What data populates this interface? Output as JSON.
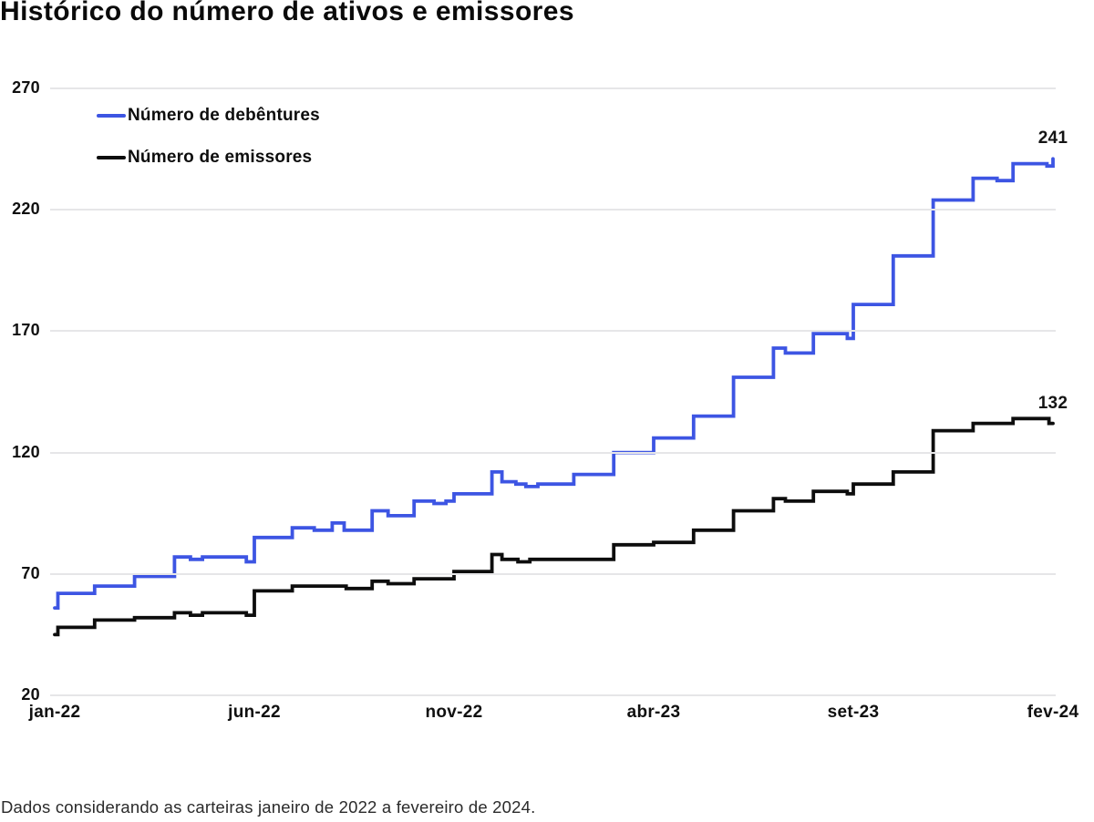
{
  "title": "Histórico do número de ativos e emissores",
  "footnote": "Dados considerando as carteiras janeiro de 2022 a fevereiro de 2024.",
  "chart_data": {
    "type": "line",
    "style": "step-after",
    "title": "Histórico do número de ativos e emissores",
    "xlabel": "",
    "ylabel": "",
    "grid": "horizontal",
    "legend_position": "top-left",
    "x_axis": {
      "unit": "months since jan-2022",
      "range": [
        0,
        25
      ],
      "tick_positions": [
        0,
        5,
        10,
        15,
        20,
        25
      ],
      "tick_labels": [
        "jan-22",
        "jun-22",
        "nov-22",
        "abr-23",
        "set-23",
        "fev-24"
      ]
    },
    "y_axis": {
      "range": [
        20,
        270
      ],
      "ticks": [
        270,
        220,
        170,
        120,
        70,
        20
      ]
    },
    "series": [
      {
        "name": "Número de debêntures",
        "color": "#3d55e3",
        "end_label": "241",
        "points": [
          [
            0,
            56
          ],
          [
            0.08,
            62
          ],
          [
            1,
            65
          ],
          [
            2,
            69
          ],
          [
            3,
            77
          ],
          [
            3.4,
            76
          ],
          [
            3.7,
            77
          ],
          [
            4.8,
            75
          ],
          [
            5,
            85
          ],
          [
            5.95,
            89
          ],
          [
            6.5,
            88
          ],
          [
            6.95,
            91
          ],
          [
            7.25,
            88
          ],
          [
            7.95,
            96
          ],
          [
            8.35,
            94
          ],
          [
            9,
            100
          ],
          [
            9.5,
            99
          ],
          [
            9.8,
            100
          ],
          [
            10,
            103
          ],
          [
            10.95,
            112
          ],
          [
            11.2,
            108
          ],
          [
            11.55,
            107
          ],
          [
            11.8,
            106
          ],
          [
            12.1,
            107
          ],
          [
            13,
            111
          ],
          [
            14,
            120
          ],
          [
            15,
            126
          ],
          [
            16,
            135
          ],
          [
            17,
            151
          ],
          [
            18,
            163
          ],
          [
            18.3,
            161
          ],
          [
            19,
            169
          ],
          [
            19.85,
            167
          ],
          [
            20,
            181
          ],
          [
            21,
            201
          ],
          [
            22,
            224
          ],
          [
            23,
            233
          ],
          [
            23.6,
            232
          ],
          [
            24,
            239
          ],
          [
            24.85,
            238
          ],
          [
            25,
            241
          ]
        ]
      },
      {
        "name": "Número de emissores",
        "color": "#0d0d0d",
        "end_label": "132",
        "points": [
          [
            0,
            45
          ],
          [
            0.08,
            48
          ],
          [
            1,
            51
          ],
          [
            2,
            52
          ],
          [
            3,
            54
          ],
          [
            3.4,
            53
          ],
          [
            3.7,
            54
          ],
          [
            4.8,
            53
          ],
          [
            5,
            63
          ],
          [
            5.95,
            65
          ],
          [
            7.3,
            64
          ],
          [
            7.95,
            67
          ],
          [
            8.35,
            66
          ],
          [
            9,
            68
          ],
          [
            10,
            71
          ],
          [
            10.95,
            78
          ],
          [
            11.2,
            76
          ],
          [
            11.6,
            75
          ],
          [
            11.9,
            76
          ],
          [
            14,
            82
          ],
          [
            15,
            83
          ],
          [
            16,
            88
          ],
          [
            17,
            96
          ],
          [
            18,
            101
          ],
          [
            18.3,
            100
          ],
          [
            19,
            104
          ],
          [
            19.85,
            103
          ],
          [
            20,
            107
          ],
          [
            21,
            112
          ],
          [
            22,
            129
          ],
          [
            23,
            132
          ],
          [
            24,
            134
          ],
          [
            24.9,
            132
          ],
          [
            25,
            132
          ]
        ]
      }
    ]
  }
}
